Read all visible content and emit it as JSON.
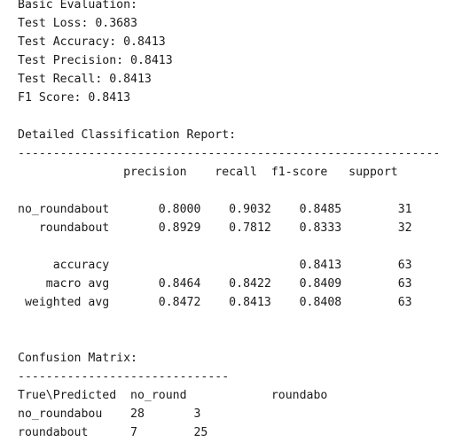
{
  "output": {
    "basic_header": "Basic Evaluation:",
    "test_loss": "Test Loss: 0.3683",
    "test_accuracy": "Test Accuracy: 0.8413",
    "test_precision": "Test Precision: 0.8413",
    "test_recall": "Test Recall: 0.8413",
    "f1_score": "F1 Score: 0.8413",
    "report_header": "Detailed Classification Report:",
    "report_divider": "------------------------------------------------------------",
    "report_columns": "               precision    recall  f1-score   support",
    "report_row_no_roundabout": "no_roundabout       0.8000    0.9032    0.8485        31",
    "report_row_roundabout": "   roundabout       0.8929    0.7812    0.8333        32",
    "report_row_accuracy": "     accuracy                           0.8413        63",
    "report_row_macro_avg": "    macro avg       0.8464    0.8422    0.8409        63",
    "report_row_weighted_avg": " weighted avg       0.8472    0.8413    0.8408        63",
    "confusion_header": "Confusion Matrix:",
    "confusion_divider": "------------------------------",
    "confusion_columns": "True\\Predicted  no_round            roundabo",
    "confusion_row_1": "no_roundabou    28       3",
    "confusion_row_2": "roundabout      7        25"
  }
}
